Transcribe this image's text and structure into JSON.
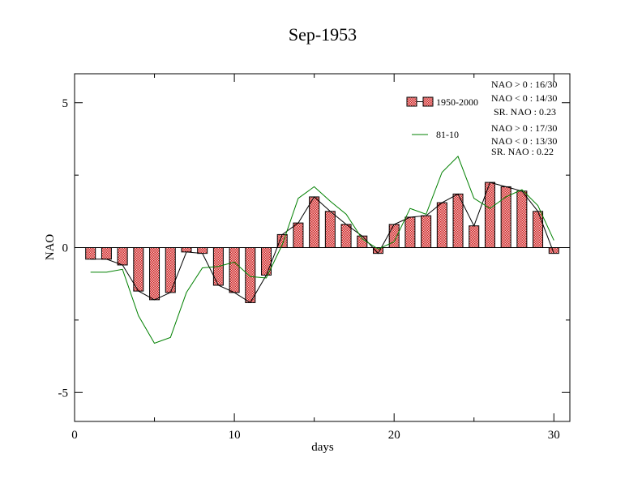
{
  "chart_data": {
    "type": "bar",
    "title": "Sep-1953",
    "xlabel": "days",
    "ylabel": "NAO",
    "xlim": [
      0,
      31
    ],
    "ylim": [
      -6,
      6
    ],
    "xticks": [
      0,
      10,
      20,
      30
    ],
    "yticks": [
      -5,
      0,
      5
    ],
    "xtick_labels": [
      "0",
      "10",
      "20",
      "30"
    ],
    "ytick_labels": [
      "-5",
      "0",
      "5"
    ],
    "x": [
      1,
      2,
      3,
      4,
      5,
      6,
      7,
      8,
      9,
      10,
      11,
      12,
      13,
      14,
      15,
      16,
      17,
      18,
      19,
      20,
      21,
      22,
      23,
      24,
      25,
      26,
      27,
      28,
      29,
      30
    ],
    "series": [
      {
        "name": "1950-2000",
        "kind": "bar+line",
        "color": "#e07070",
        "line_color": "#000000",
        "values": [
          -0.4,
          -0.4,
          -0.6,
          -1.5,
          -1.8,
          -1.55,
          -0.15,
          -0.2,
          -1.3,
          -1.55,
          -1.9,
          -0.95,
          0.45,
          0.85,
          1.75,
          1.25,
          0.8,
          0.4,
          -0.2,
          0.8,
          1.05,
          1.1,
          1.55,
          1.85,
          0.75,
          2.25,
          2.1,
          1.95,
          1.25,
          -0.2
        ]
      },
      {
        "name": "81-10",
        "kind": "line",
        "color": "#008000",
        "values": [
          -0.85,
          -0.85,
          -0.75,
          -2.35,
          -3.3,
          -3.1,
          -1.55,
          -0.7,
          -0.65,
          -0.5,
          -1.0,
          -1.05,
          0.1,
          1.7,
          2.1,
          1.6,
          1.15,
          0.3,
          -0.05,
          0.2,
          1.35,
          1.15,
          2.6,
          3.15,
          1.7,
          1.35,
          1.75,
          2.0,
          1.45,
          0.25
        ]
      }
    ],
    "legend_position": "top-right",
    "stats": [
      [
        "NAO > 0 :  16/30",
        "NAO < 0 :  14/30",
        "SR. NAO :  0.23"
      ],
      [
        "NAO > 0 :  17/30",
        "NAO < 0 :  13/30",
        "SR. NAO :  0.22"
      ]
    ]
  }
}
